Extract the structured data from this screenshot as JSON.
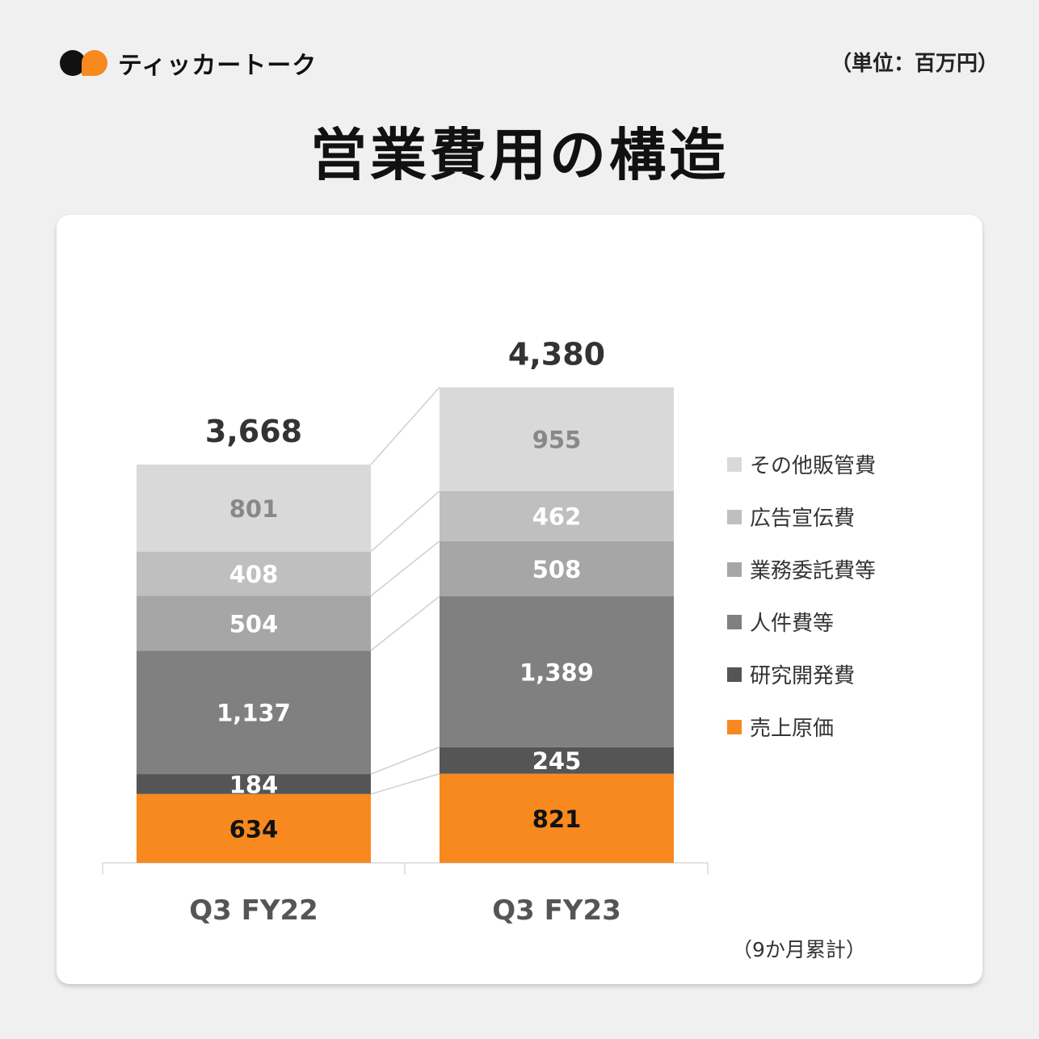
{
  "brand": {
    "name": "ティッカートーク",
    "logo_icon": "ticker-talk-logo-icon"
  },
  "unit_label": "（単位：百万円）",
  "title": "営業費用の構造",
  "note": "（9か月累計）",
  "colors": {
    "売上原価": "#f7891e",
    "研究開発費": "#555555",
    "人件費等": "#808080",
    "業務委託費等": "#a6a6a6",
    "広告宣伝費": "#bfbfbf",
    "その他販管費": "#d9d9d9"
  },
  "chart_data": {
    "type": "bar",
    "stacked": true,
    "categories": [
      "Q3 FY22",
      "Q3 FY23"
    ],
    "series": [
      {
        "name": "売上原価",
        "values": [
          634,
          821
        ]
      },
      {
        "name": "研究開発費",
        "values": [
          184,
          245
        ]
      },
      {
        "name": "人件費等",
        "values": [
          1137,
          1389
        ]
      },
      {
        "name": "業務委託費等",
        "values": [
          504,
          508
        ]
      },
      {
        "name": "広告宣伝費",
        "values": [
          408,
          462
        ]
      },
      {
        "name": "その他販管費",
        "values": [
          801,
          955
        ]
      }
    ],
    "totals": [
      "3,668",
      "4,380"
    ],
    "value_labels": [
      [
        "634",
        "821"
      ],
      [
        "184",
        "245"
      ],
      [
        "1,137",
        "1,389"
      ],
      [
        "504",
        "508"
      ],
      [
        "408",
        "462"
      ],
      [
        "801",
        "955"
      ]
    ],
    "legend_order": [
      "その他販管費",
      "広告宣伝費",
      "業務委託費等",
      "人件費等",
      "研究開発費",
      "売上原価"
    ],
    "legend_position": "right",
    "ylim": [
      0,
      5000
    ],
    "grid": false
  }
}
